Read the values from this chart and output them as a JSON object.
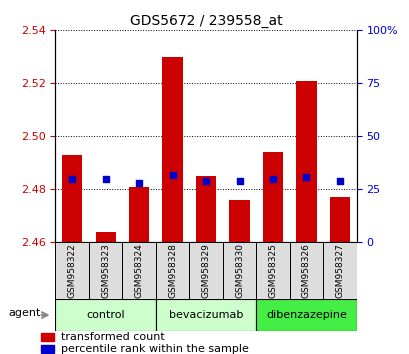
{
  "title": "GDS5672 / 239558_at",
  "samples": [
    "GSM958322",
    "GSM958323",
    "GSM958324",
    "GSM958328",
    "GSM958329",
    "GSM958330",
    "GSM958325",
    "GSM958326",
    "GSM958327"
  ],
  "transformed_count": [
    2.493,
    2.464,
    2.481,
    2.53,
    2.485,
    2.476,
    2.494,
    2.521,
    2.477
  ],
  "percentile_rank": [
    30,
    30,
    28,
    32,
    29,
    29,
    30,
    31,
    29
  ],
  "ymin": 2.46,
  "ymax": 2.54,
  "yticks": [
    2.46,
    2.48,
    2.5,
    2.52,
    2.54
  ],
  "y2min": 0,
  "y2max": 100,
  "y2ticks": [
    0,
    25,
    50,
    75,
    100
  ],
  "bar_color": "#cc0000",
  "dot_color": "#0000cc",
  "groups": [
    {
      "label": "control",
      "start": 0,
      "end": 3,
      "color": "#ccffcc"
    },
    {
      "label": "bevacizumab",
      "start": 3,
      "end": 6,
      "color": "#ccffcc"
    },
    {
      "label": "dibenzazepine",
      "start": 6,
      "end": 9,
      "color": "#44ee44"
    }
  ],
  "agent_label": "agent",
  "ylabel_color": "#cc0000",
  "y2label_color": "#0000cc",
  "bar_width": 0.6,
  "dot_size": 25,
  "grid_linestyle": "dotted",
  "sample_box_color": "#dddddd",
  "title_fontsize": 10,
  "tick_fontsize": 8,
  "sample_fontsize": 6.5,
  "group_fontsize": 8,
  "legend_fontsize": 8
}
